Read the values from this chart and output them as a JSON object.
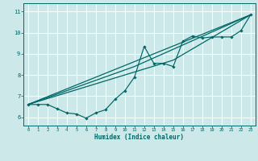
{
  "title": "",
  "xlabel": "Humidex (Indice chaleur)",
  "ylabel": "",
  "bg_color": "#cde8e8",
  "grid_color": "#ffffff",
  "line_color": "#006666",
  "xlim": [
    -0.5,
    23.5
  ],
  "ylim": [
    5.6,
    11.4
  ],
  "xticks": [
    0,
    1,
    2,
    3,
    4,
    5,
    6,
    7,
    8,
    9,
    10,
    11,
    12,
    13,
    14,
    15,
    16,
    17,
    18,
    19,
    20,
    21,
    22,
    23
  ],
  "yticks": [
    6,
    7,
    8,
    9,
    10,
    11
  ],
  "data_x": [
    0,
    1,
    2,
    3,
    4,
    5,
    6,
    7,
    8,
    9,
    10,
    11,
    12,
    13,
    14,
    15,
    16,
    17,
    18,
    19,
    20,
    21,
    22,
    23
  ],
  "data_y": [
    6.6,
    6.6,
    6.6,
    6.4,
    6.2,
    6.15,
    5.95,
    6.2,
    6.35,
    6.85,
    7.25,
    7.9,
    9.35,
    8.55,
    8.55,
    8.4,
    9.6,
    9.85,
    9.75,
    9.8,
    9.8,
    9.8,
    10.1,
    10.85
  ],
  "line1_x": [
    0,
    23
  ],
  "line1_y": [
    6.6,
    10.85
  ],
  "line2_x": [
    0,
    15,
    23
  ],
  "line2_y": [
    6.6,
    8.7,
    10.85
  ],
  "line3_x": [
    0,
    11,
    23
  ],
  "line3_y": [
    6.6,
    8.4,
    10.85
  ]
}
